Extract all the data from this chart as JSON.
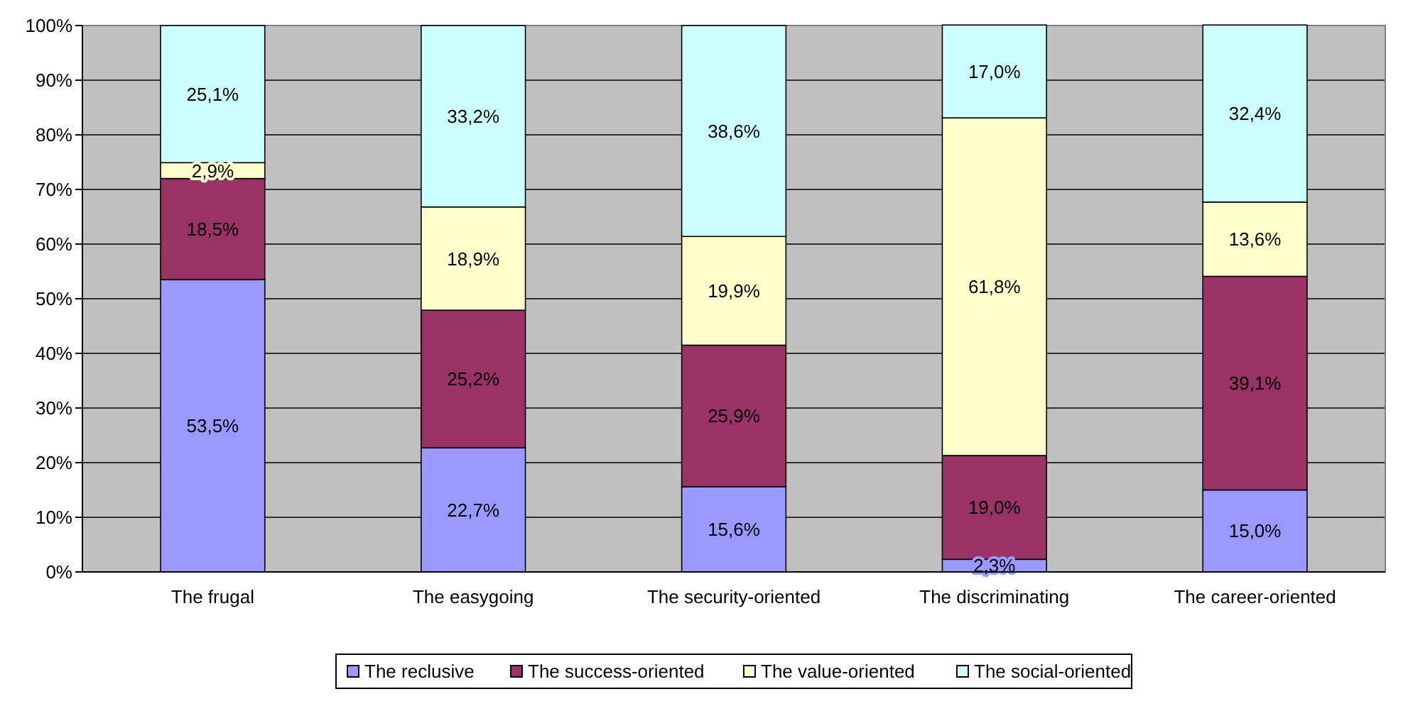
{
  "chart_data": {
    "type": "bar",
    "stacked": true,
    "categories": [
      "The frugal",
      "The easygoing",
      "The security-oriented",
      "The discriminating",
      "The career-oriented"
    ],
    "series": [
      {
        "name": "The reclusive",
        "color": "#9999ff",
        "values": [
          53.5,
          22.7,
          15.6,
          2.3,
          15.0
        ],
        "value_labels": [
          "53,5%",
          "22,7%",
          "15,6%",
          "2,3%",
          "15,0%"
        ]
      },
      {
        "name": "The success-oriented",
        "color": "#993366",
        "values": [
          18.5,
          25.2,
          25.9,
          19.0,
          39.1
        ],
        "value_labels": [
          "18,5%",
          "25,2%",
          "25,9%",
          "19,0%",
          "39,1%"
        ]
      },
      {
        "name": "The value-oriented",
        "color": "#ffffcc",
        "values": [
          2.9,
          18.9,
          19.9,
          61.8,
          13.6
        ],
        "value_labels": [
          "2,9%",
          "18,9%",
          "19,9%",
          "61,8%",
          "13,6%"
        ]
      },
      {
        "name": "The social-oriented",
        "color": "#ccffff",
        "values": [
          25.1,
          33.2,
          38.6,
          17.0,
          32.4
        ],
        "value_labels": [
          "25,1%",
          "33,2%",
          "38,6%",
          "17,0%",
          "32,4%"
        ]
      }
    ],
    "ylim": [
      0,
      100
    ],
    "yticks": [
      {
        "value": 0,
        "label": "0%"
      },
      {
        "value": 10,
        "label": "10%"
      },
      {
        "value": 20,
        "label": "20%"
      },
      {
        "value": 30,
        "label": "30%"
      },
      {
        "value": 40,
        "label": "40%"
      },
      {
        "value": 50,
        "label": "50%"
      },
      {
        "value": 60,
        "label": "60%"
      },
      {
        "value": 70,
        "label": "70%"
      },
      {
        "value": 80,
        "label": "80%"
      },
      {
        "value": 90,
        "label": "90%"
      },
      {
        "value": 100,
        "label": "100%"
      }
    ],
    "grid": "y",
    "legend": "bottom"
  }
}
